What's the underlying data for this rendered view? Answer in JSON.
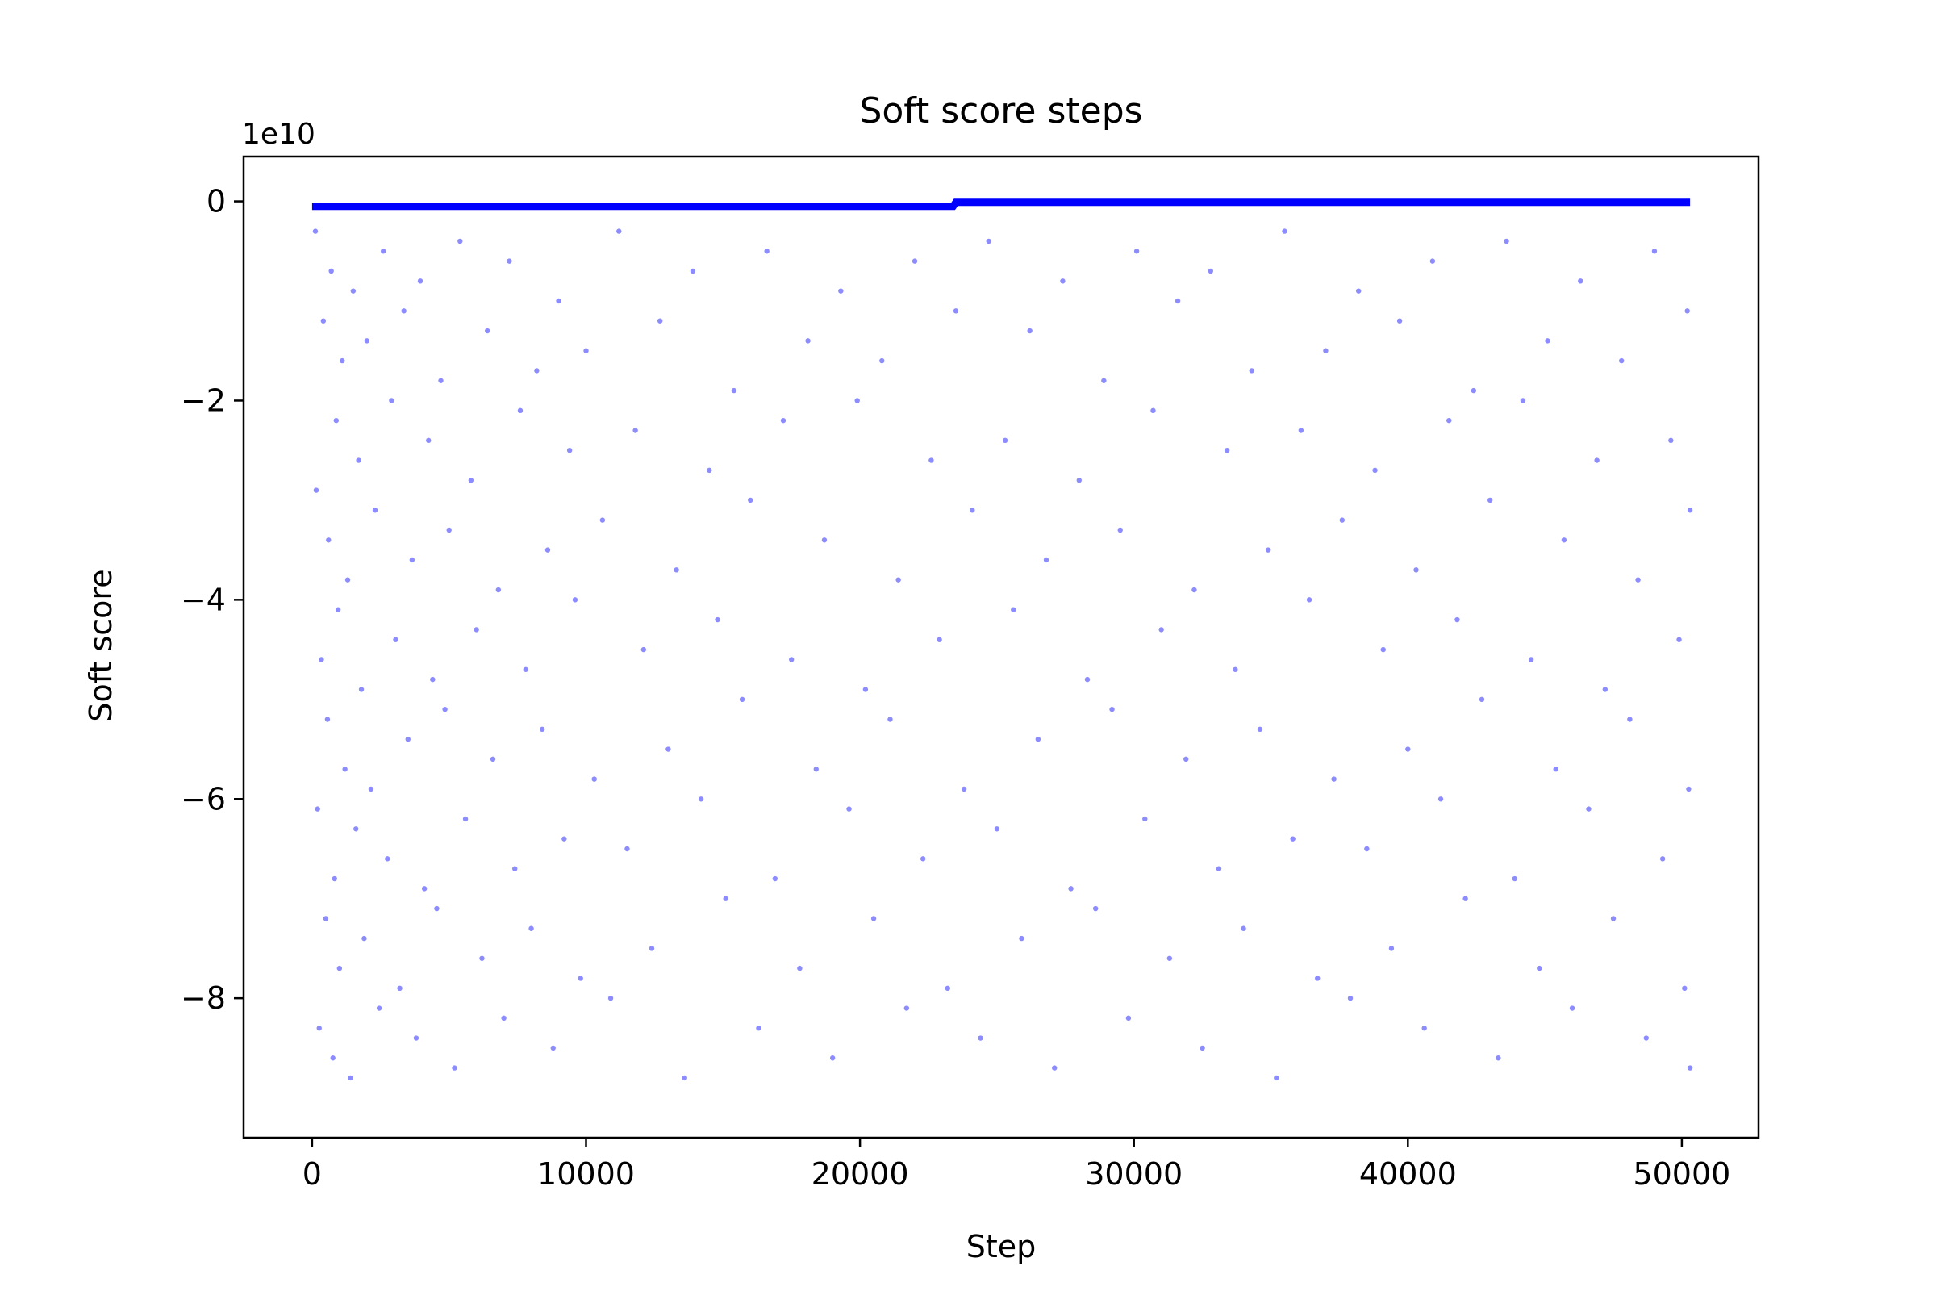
{
  "chart_data": {
    "type": "scatter",
    "title": "Soft score steps",
    "xlabel": "Step",
    "ylabel": "Soft score",
    "y_offset_label": "1e10",
    "y_scale_factor": 10000000000,
    "xlim": [
      -2500,
      52800
    ],
    "ylim": [
      -9.4,
      0.45
    ],
    "x_ticks": [
      0,
      10000,
      20000,
      30000,
      40000,
      50000
    ],
    "x_tick_labels": [
      "0",
      "10000",
      "20000",
      "30000",
      "40000",
      "50000"
    ],
    "y_ticks": [
      0,
      -2,
      -4,
      -6,
      -8
    ],
    "y_tick_labels": [
      "0",
      "−2",
      "−4",
      "−6",
      "−8"
    ],
    "grid": false,
    "legend": false,
    "marker_color": "#0000ff",
    "marker_alpha": 0.45,
    "series": [
      {
        "best_score_trace": [
          [
            0,
            -0.05
          ],
          [
            23400,
            -0.05
          ],
          [
            23500,
            -0.01
          ],
          [
            50300,
            -0.01
          ]
        ],
        "sampled_points": [
          [
            120,
            -0.3
          ],
          [
            150,
            -2.9
          ],
          [
            200,
            -6.1
          ],
          [
            260,
            -8.3
          ],
          [
            340,
            -4.6
          ],
          [
            410,
            -1.2
          ],
          [
            500,
            -7.2
          ],
          [
            560,
            -5.2
          ],
          [
            600,
            -3.4
          ],
          [
            700,
            -0.7
          ],
          [
            760,
            -8.6
          ],
          [
            820,
            -6.8
          ],
          [
            880,
            -2.2
          ],
          [
            950,
            -4.1
          ],
          [
            1000,
            -7.7
          ],
          [
            1100,
            -1.6
          ],
          [
            1200,
            -5.7
          ],
          [
            1300,
            -3.8
          ],
          [
            1400,
            -8.8
          ],
          [
            1500,
            -0.9
          ],
          [
            1600,
            -6.3
          ],
          [
            1700,
            -2.6
          ],
          [
            1800,
            -4.9
          ],
          [
            1900,
            -7.4
          ],
          [
            2000,
            -1.4
          ],
          [
            2150,
            -5.9
          ],
          [
            2300,
            -3.1
          ],
          [
            2450,
            -8.1
          ],
          [
            2600,
            -0.5
          ],
          [
            2750,
            -6.6
          ],
          [
            2900,
            -2.0
          ],
          [
            3050,
            -4.4
          ],
          [
            3200,
            -7.9
          ],
          [
            3350,
            -1.1
          ],
          [
            3500,
            -5.4
          ],
          [
            3650,
            -3.6
          ],
          [
            3800,
            -8.4
          ],
          [
            3950,
            -0.8
          ],
          [
            4100,
            -6.9
          ],
          [
            4250,
            -2.4
          ],
          [
            4400,
            -4.8
          ],
          [
            4550,
            -7.1
          ],
          [
            4700,
            -1.8
          ],
          [
            4850,
            -5.1
          ],
          [
            5000,
            -3.3
          ],
          [
            5200,
            -8.7
          ],
          [
            5400,
            -0.4
          ],
          [
            5600,
            -6.2
          ],
          [
            5800,
            -2.8
          ],
          [
            6000,
            -4.3
          ],
          [
            6200,
            -7.6
          ],
          [
            6400,
            -1.3
          ],
          [
            6600,
            -5.6
          ],
          [
            6800,
            -3.9
          ],
          [
            7000,
            -8.2
          ],
          [
            7200,
            -0.6
          ],
          [
            7400,
            -6.7
          ],
          [
            7600,
            -2.1
          ],
          [
            7800,
            -4.7
          ],
          [
            8000,
            -7.3
          ],
          [
            8200,
            -1.7
          ],
          [
            8400,
            -5.3
          ],
          [
            8600,
            -3.5
          ],
          [
            8800,
            -8.5
          ],
          [
            9000,
            -1.0
          ],
          [
            9200,
            -6.4
          ],
          [
            9400,
            -2.5
          ],
          [
            9600,
            -4.0
          ],
          [
            9800,
            -7.8
          ],
          [
            10000,
            -1.5
          ],
          [
            10300,
            -5.8
          ],
          [
            10600,
            -3.2
          ],
          [
            10900,
            -8.0
          ],
          [
            11200,
            -0.3
          ],
          [
            11500,
            -6.5
          ],
          [
            11800,
            -2.3
          ],
          [
            12100,
            -4.5
          ],
          [
            12400,
            -7.5
          ],
          [
            12700,
            -1.2
          ],
          [
            13000,
            -5.5
          ],
          [
            13300,
            -3.7
          ],
          [
            13600,
            -8.8
          ],
          [
            13900,
            -0.7
          ],
          [
            14200,
            -6.0
          ],
          [
            14500,
            -2.7
          ],
          [
            14800,
            -4.2
          ],
          [
            15100,
            -7.0
          ],
          [
            15400,
            -1.9
          ],
          [
            15700,
            -5.0
          ],
          [
            16000,
            -3.0
          ],
          [
            16300,
            -8.3
          ],
          [
            16600,
            -0.5
          ],
          [
            16900,
            -6.8
          ],
          [
            17200,
            -2.2
          ],
          [
            17500,
            -4.6
          ],
          [
            17800,
            -7.7
          ],
          [
            18100,
            -1.4
          ],
          [
            18400,
            -5.7
          ],
          [
            18700,
            -3.4
          ],
          [
            19000,
            -8.6
          ],
          [
            19300,
            -0.9
          ],
          [
            19600,
            -6.1
          ],
          [
            19900,
            -2.0
          ],
          [
            20200,
            -4.9
          ],
          [
            20500,
            -7.2
          ],
          [
            20800,
            -1.6
          ],
          [
            21100,
            -5.2
          ],
          [
            21400,
            -3.8
          ],
          [
            21700,
            -8.1
          ],
          [
            22000,
            -0.6
          ],
          [
            22300,
            -6.6
          ],
          [
            22600,
            -2.6
          ],
          [
            22900,
            -4.4
          ],
          [
            23200,
            -7.9
          ],
          [
            23500,
            -1.1
          ],
          [
            23800,
            -5.9
          ],
          [
            24100,
            -3.1
          ],
          [
            24400,
            -8.4
          ],
          [
            24700,
            -0.4
          ],
          [
            25000,
            -6.3
          ],
          [
            25300,
            -2.4
          ],
          [
            25600,
            -4.1
          ],
          [
            25900,
            -7.4
          ],
          [
            26200,
            -1.3
          ],
          [
            26500,
            -5.4
          ],
          [
            26800,
            -3.6
          ],
          [
            27100,
            -8.7
          ],
          [
            27400,
            -0.8
          ],
          [
            27700,
            -6.9
          ],
          [
            28000,
            -2.8
          ],
          [
            28300,
            -4.8
          ],
          [
            28600,
            -7.1
          ],
          [
            28900,
            -1.8
          ],
          [
            29200,
            -5.1
          ],
          [
            29500,
            -3.3
          ],
          [
            29800,
            -8.2
          ],
          [
            30100,
            -0.5
          ],
          [
            30400,
            -6.2
          ],
          [
            30700,
            -2.1
          ],
          [
            31000,
            -4.3
          ],
          [
            31300,
            -7.6
          ],
          [
            31600,
            -1.0
          ],
          [
            31900,
            -5.6
          ],
          [
            32200,
            -3.9
          ],
          [
            32500,
            -8.5
          ],
          [
            32800,
            -0.7
          ],
          [
            33100,
            -6.7
          ],
          [
            33400,
            -2.5
          ],
          [
            33700,
            -4.7
          ],
          [
            34000,
            -7.3
          ],
          [
            34300,
            -1.7
          ],
          [
            34600,
            -5.3
          ],
          [
            34900,
            -3.5
          ],
          [
            35200,
            -8.8
          ],
          [
            35500,
            -0.3
          ],
          [
            35800,
            -6.4
          ],
          [
            36100,
            -2.3
          ],
          [
            36400,
            -4.0
          ],
          [
            36700,
            -7.8
          ],
          [
            37000,
            -1.5
          ],
          [
            37300,
            -5.8
          ],
          [
            37600,
            -3.2
          ],
          [
            37900,
            -8.0
          ],
          [
            38200,
            -0.9
          ],
          [
            38500,
            -6.5
          ],
          [
            38800,
            -2.7
          ],
          [
            39100,
            -4.5
          ],
          [
            39400,
            -7.5
          ],
          [
            39700,
            -1.2
          ],
          [
            40000,
            -5.5
          ],
          [
            40300,
            -3.7
          ],
          [
            40600,
            -8.3
          ],
          [
            40900,
            -0.6
          ],
          [
            41200,
            -6.0
          ],
          [
            41500,
            -2.2
          ],
          [
            41800,
            -4.2
          ],
          [
            42100,
            -7.0
          ],
          [
            42400,
            -1.9
          ],
          [
            42700,
            -5.0
          ],
          [
            43000,
            -3.0
          ],
          [
            43300,
            -8.6
          ],
          [
            43600,
            -0.4
          ],
          [
            43900,
            -6.8
          ],
          [
            44200,
            -2.0
          ],
          [
            44500,
            -4.6
          ],
          [
            44800,
            -7.7
          ],
          [
            45100,
            -1.4
          ],
          [
            45400,
            -5.7
          ],
          [
            45700,
            -3.4
          ],
          [
            46000,
            -8.1
          ],
          [
            46300,
            -0.8
          ],
          [
            46600,
            -6.1
          ],
          [
            46900,
            -2.6
          ],
          [
            47200,
            -4.9
          ],
          [
            47500,
            -7.2
          ],
          [
            47800,
            -1.6
          ],
          [
            48100,
            -5.2
          ],
          [
            48400,
            -3.8
          ],
          [
            48700,
            -8.4
          ],
          [
            49000,
            -0.5
          ],
          [
            49300,
            -6.6
          ],
          [
            49600,
            -2.4
          ],
          [
            49900,
            -4.4
          ],
          [
            50100,
            -7.9
          ],
          [
            50200,
            -1.1
          ],
          [
            50250,
            -5.9
          ],
          [
            50300,
            -3.1
          ],
          [
            50300,
            -8.7
          ]
        ]
      }
    ]
  }
}
